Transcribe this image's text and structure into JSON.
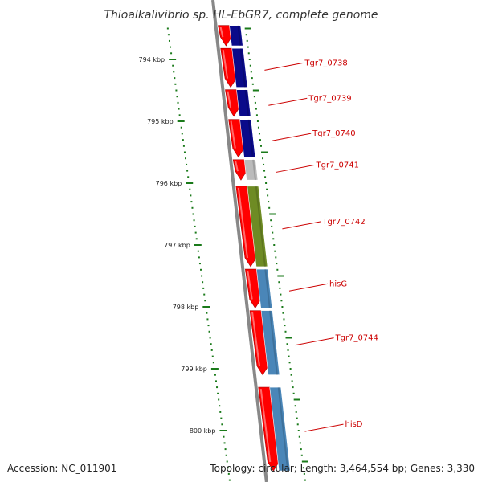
{
  "title": "Thioalkalivibrio sp. HL-EbGR7, complete genome",
  "accession_text": "Accession: NC_011901",
  "summary_text": "Topology: circular; Length: 3,464,554 bp; Genes: 3,330",
  "colors": {
    "backbone": "#888888",
    "strand": "#ff0000",
    "tick": "#1a7a1a",
    "label_line": "#cc0000",
    "cog_navy": "#0a0a8a",
    "cog_gray": "#bbbbbb",
    "cog_olive": "#6e8b24",
    "cog_steelblue": "#4a86b8"
  },
  "ticks": [
    {
      "label": "794 kbp",
      "kbp": 794
    },
    {
      "label": "795 kbp",
      "kbp": 795
    },
    {
      "label": "796 kbp",
      "kbp": 796
    },
    {
      "label": "797 kbp",
      "kbp": 797
    },
    {
      "label": "798 kbp",
      "kbp": 798
    },
    {
      "label": "799 kbp",
      "kbp": 799
    },
    {
      "label": "800 kbp",
      "kbp": 800
    }
  ],
  "genes": [
    {
      "name": "",
      "start": 793.45,
      "end": 793.78,
      "cog": "cog_navy"
    },
    {
      "name": "Tgr7_0738",
      "start": 793.82,
      "end": 794.45,
      "cog": "cog_navy"
    },
    {
      "name": "Tgr7_0739",
      "start": 794.49,
      "end": 794.92,
      "cog": "cog_navy"
    },
    {
      "name": "Tgr7_0740",
      "start": 794.97,
      "end": 795.58,
      "cog": "cog_navy"
    },
    {
      "name": "Tgr7_0741",
      "start": 795.62,
      "end": 795.95,
      "cog": "cog_gray"
    },
    {
      "name": "Tgr7_0742",
      "start": 796.05,
      "end": 797.35,
      "cog": "cog_olive"
    },
    {
      "name": "hisG",
      "start": 797.39,
      "end": 798.02,
      "cog": "cog_steelblue"
    },
    {
      "name": "Tgr7_0744",
      "start": 798.06,
      "end": 799.1,
      "cog": "cog_steelblue"
    },
    {
      "name": "hisD",
      "start": 799.3,
      "end": 800.65,
      "cog": "cog_steelblue"
    }
  ]
}
